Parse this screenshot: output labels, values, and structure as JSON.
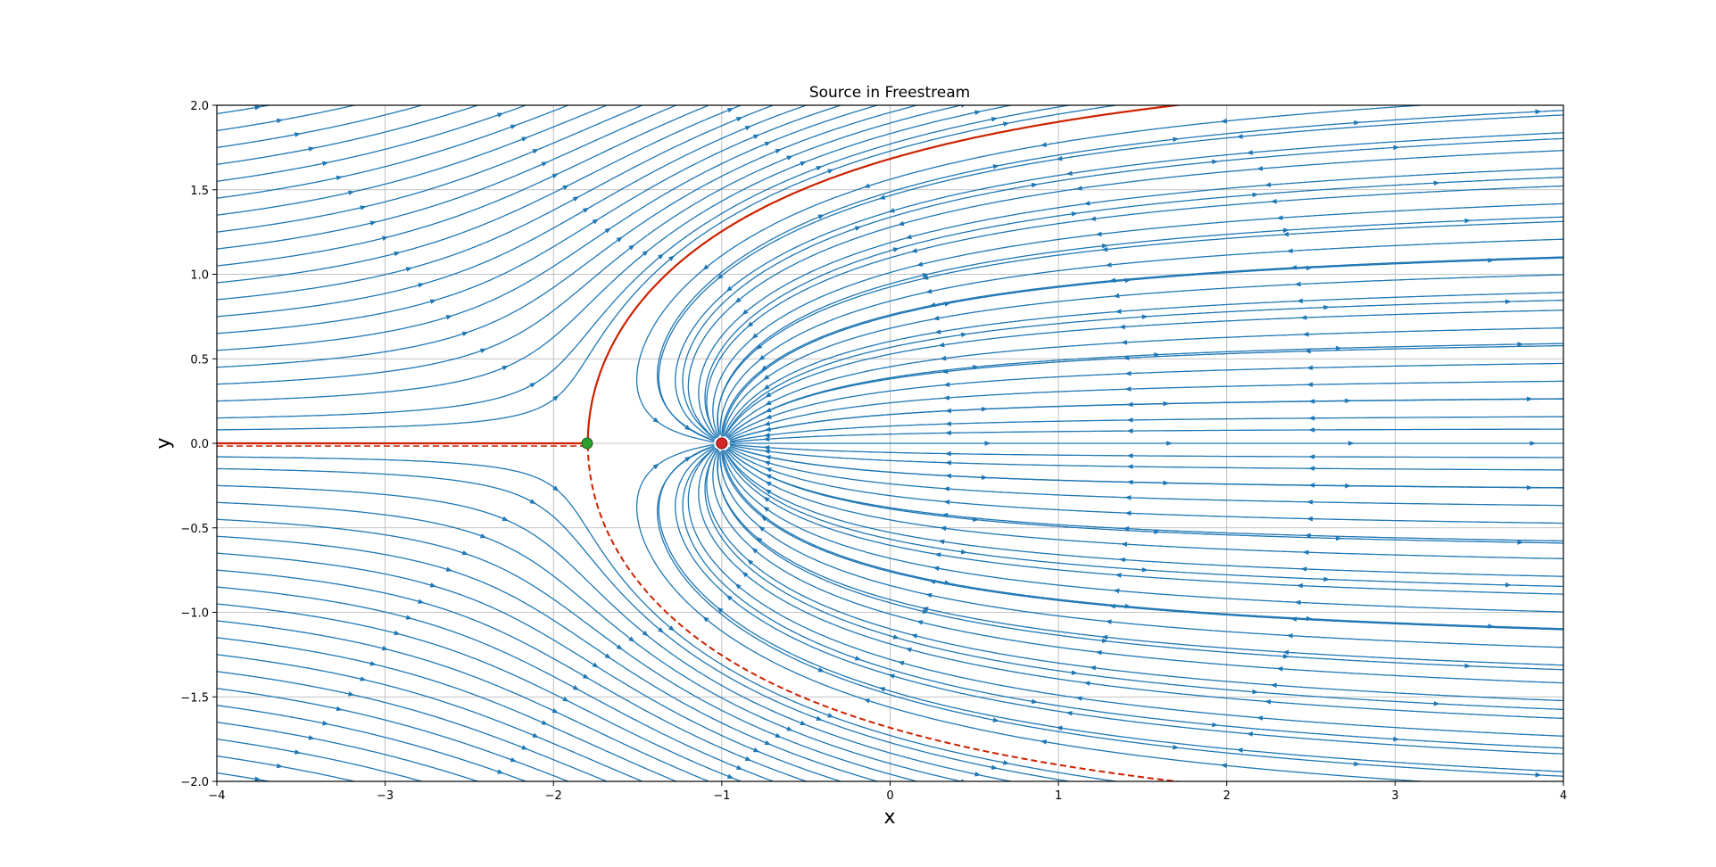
{
  "chart_data": {
    "type": "streamplot",
    "title": "Source in Freestream",
    "xlabel": "x",
    "ylabel": "y",
    "xlim": [
      -4,
      4
    ],
    "ylim": [
      -2,
      2
    ],
    "grid": true,
    "xticks": [
      "−4",
      "−3",
      "−2",
      "−1",
      "0",
      "1",
      "2",
      "3",
      "4"
    ],
    "yticks": [
      "−2.0",
      "−1.5",
      "−1.0",
      "−0.5",
      "0.0",
      "0.5",
      "1.0",
      "1.5",
      "2.0"
    ],
    "xtick_values": [
      -4,
      -3,
      -2,
      -1,
      0,
      1,
      2,
      3,
      4
    ],
    "ytick_values": [
      -2,
      -1.5,
      -1,
      -0.5,
      0,
      0.5,
      1,
      1.5,
      2
    ],
    "freestream_speed": 1.0,
    "source_strength": 5.0,
    "source": {
      "x": -1.0,
      "y": 0.0
    },
    "stagnation_point": {
      "x": -1.8,
      "y": 0.0
    },
    "colors": {
      "streamlines": "#1f77b4",
      "dividing_streamline": "#cc2200",
      "source_marker": "#d62728",
      "stagnation_marker": "#2ca02c",
      "grid": "#b0b0b0"
    },
    "streamline_offsets_y": [
      -1.95,
      -1.85,
      -1.75,
      -1.65,
      -1.55,
      -1.45,
      -1.35,
      -1.25,
      -1.15,
      -1.05,
      -0.95,
      -0.85,
      -0.75,
      -0.65,
      -0.55,
      -0.45,
      -0.35,
      -0.25,
      -0.15,
      -0.08,
      0.08,
      0.15,
      0.25,
      0.35,
      0.45,
      0.55,
      0.65,
      0.75,
      0.85,
      0.95,
      1.05,
      1.15,
      1.25,
      1.35,
      1.45,
      1.55,
      1.65,
      1.75,
      1.85,
      1.95
    ],
    "source_ray_angles_deg": [
      45,
      65,
      85,
      105,
      125,
      145,
      160,
      -45,
      -65,
      -85,
      -105,
      -125,
      -145,
      -160,
      20,
      -20,
      0
    ]
  }
}
